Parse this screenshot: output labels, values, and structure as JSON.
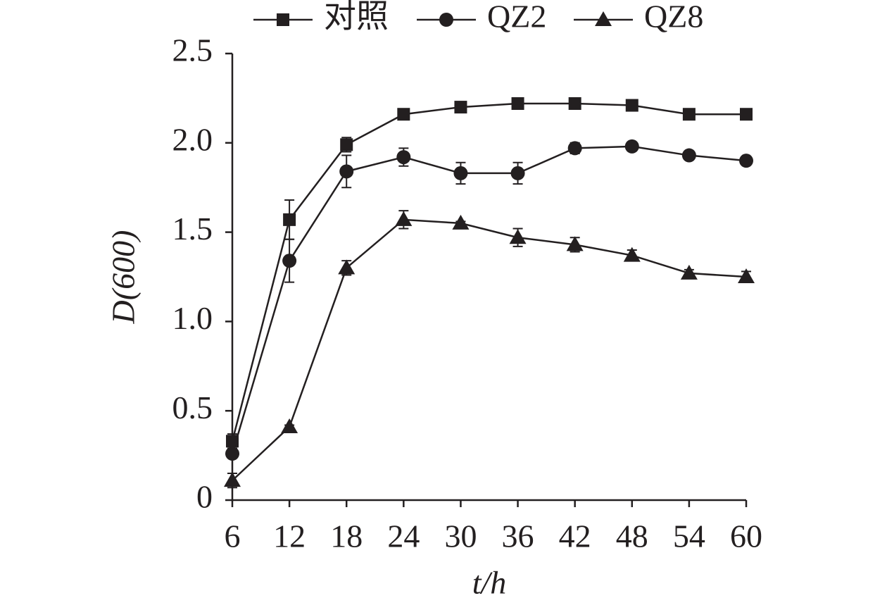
{
  "chart_data": {
    "type": "line",
    "x_label": "t/h",
    "y_label": "D(600)",
    "x": [
      6,
      12,
      18,
      24,
      30,
      36,
      42,
      48,
      54,
      60
    ],
    "xlim": [
      6,
      60
    ],
    "xticks": [
      6,
      12,
      18,
      24,
      30,
      36,
      42,
      48,
      54,
      60
    ],
    "ylim": [
      0,
      2.5
    ],
    "yticks": [
      0,
      0.5,
      {
        "value": 1,
        "label": "1.0"
      },
      1.5,
      {
        "value": 2,
        "label": "2.0"
      },
      2.5
    ],
    "legend": "top",
    "series": [
      {
        "name": "对照",
        "color": "#231f20",
        "marker": "square",
        "values": [
          0.33,
          1.57,
          1.99,
          2.16,
          2.2,
          2.22,
          2.22,
          2.21,
          2.16,
          2.16
        ],
        "errors": [
          0.04,
          0.11,
          0.04,
          0.01,
          0.01,
          0.01,
          0.01,
          0.01,
          0.01,
          0.01
        ]
      },
      {
        "name": "QZ2",
        "color": "#231f20",
        "marker": "circle",
        "values": [
          0.26,
          1.34,
          1.84,
          1.92,
          1.83,
          1.83,
          1.97,
          1.98,
          1.93,
          1.9
        ],
        "errors": [
          0.01,
          0.12,
          0.09,
          0.05,
          0.06,
          0.06,
          0.03,
          0.01,
          0.01,
          0.01
        ]
      },
      {
        "name": "QZ8",
        "color": "#231f20",
        "marker": "triangle",
        "values": [
          0.11,
          0.41,
          1.3,
          1.57,
          1.55,
          1.47,
          1.43,
          1.37,
          1.27,
          1.25
        ],
        "errors": [
          0.04,
          0.01,
          0.04,
          0.05,
          0.01,
          0.05,
          0.04,
          0.03,
          0.02,
          0.03
        ]
      }
    ]
  }
}
